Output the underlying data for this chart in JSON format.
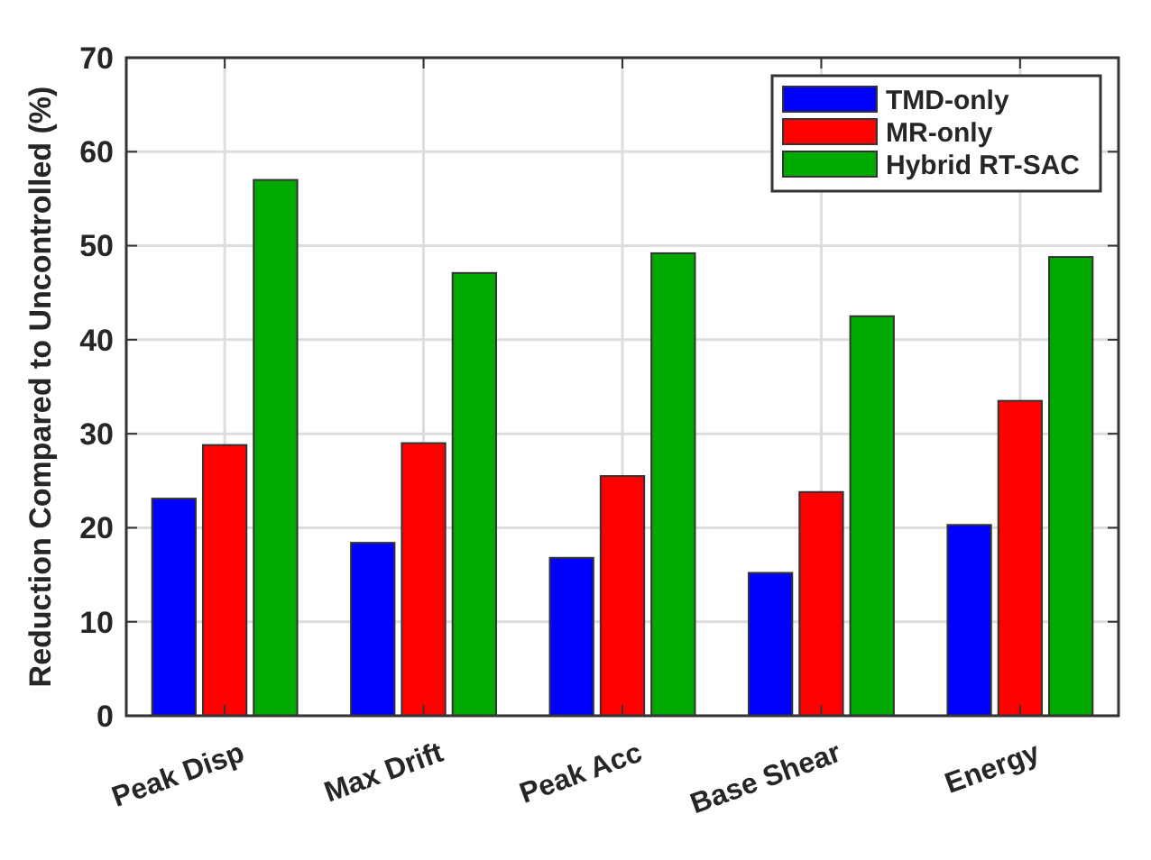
{
  "chart_data": {
    "type": "bar",
    "ylabel": "Reduction Compared to Uncontrolled (%)",
    "categories": [
      "Peak Disp",
      "Max Drift",
      "Peak Acc",
      "Base Shear",
      "Energy"
    ],
    "series": [
      {
        "name": "TMD-only",
        "color": "#0000ff",
        "values": [
          23.1,
          18.4,
          16.8,
          15.2,
          20.3
        ]
      },
      {
        "name": "MR-only",
        "color": "#ff0000",
        "values": [
          28.8,
          29.0,
          25.5,
          23.8,
          33.5
        ]
      },
      {
        "name": "Hybrid RT-SAC",
        "color": "#00aa00",
        "values": [
          57,
          47.1,
          49.2,
          42.5,
          48.8
        ]
      }
    ],
    "ylim": [
      0,
      70
    ],
    "yticks": [
      0,
      10,
      20,
      30,
      40,
      50,
      60,
      70
    ],
    "grid": true,
    "legend": "top right"
  }
}
